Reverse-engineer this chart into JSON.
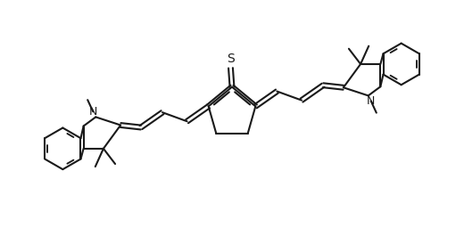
{
  "bg_color": "#ffffff",
  "line_color": "#1a1a1a",
  "line_width": 1.5,
  "fig_width": 5.2,
  "fig_height": 2.56,
  "dpi": 100,
  "xlim": [
    0,
    10
  ],
  "ylim": [
    0,
    5
  ]
}
